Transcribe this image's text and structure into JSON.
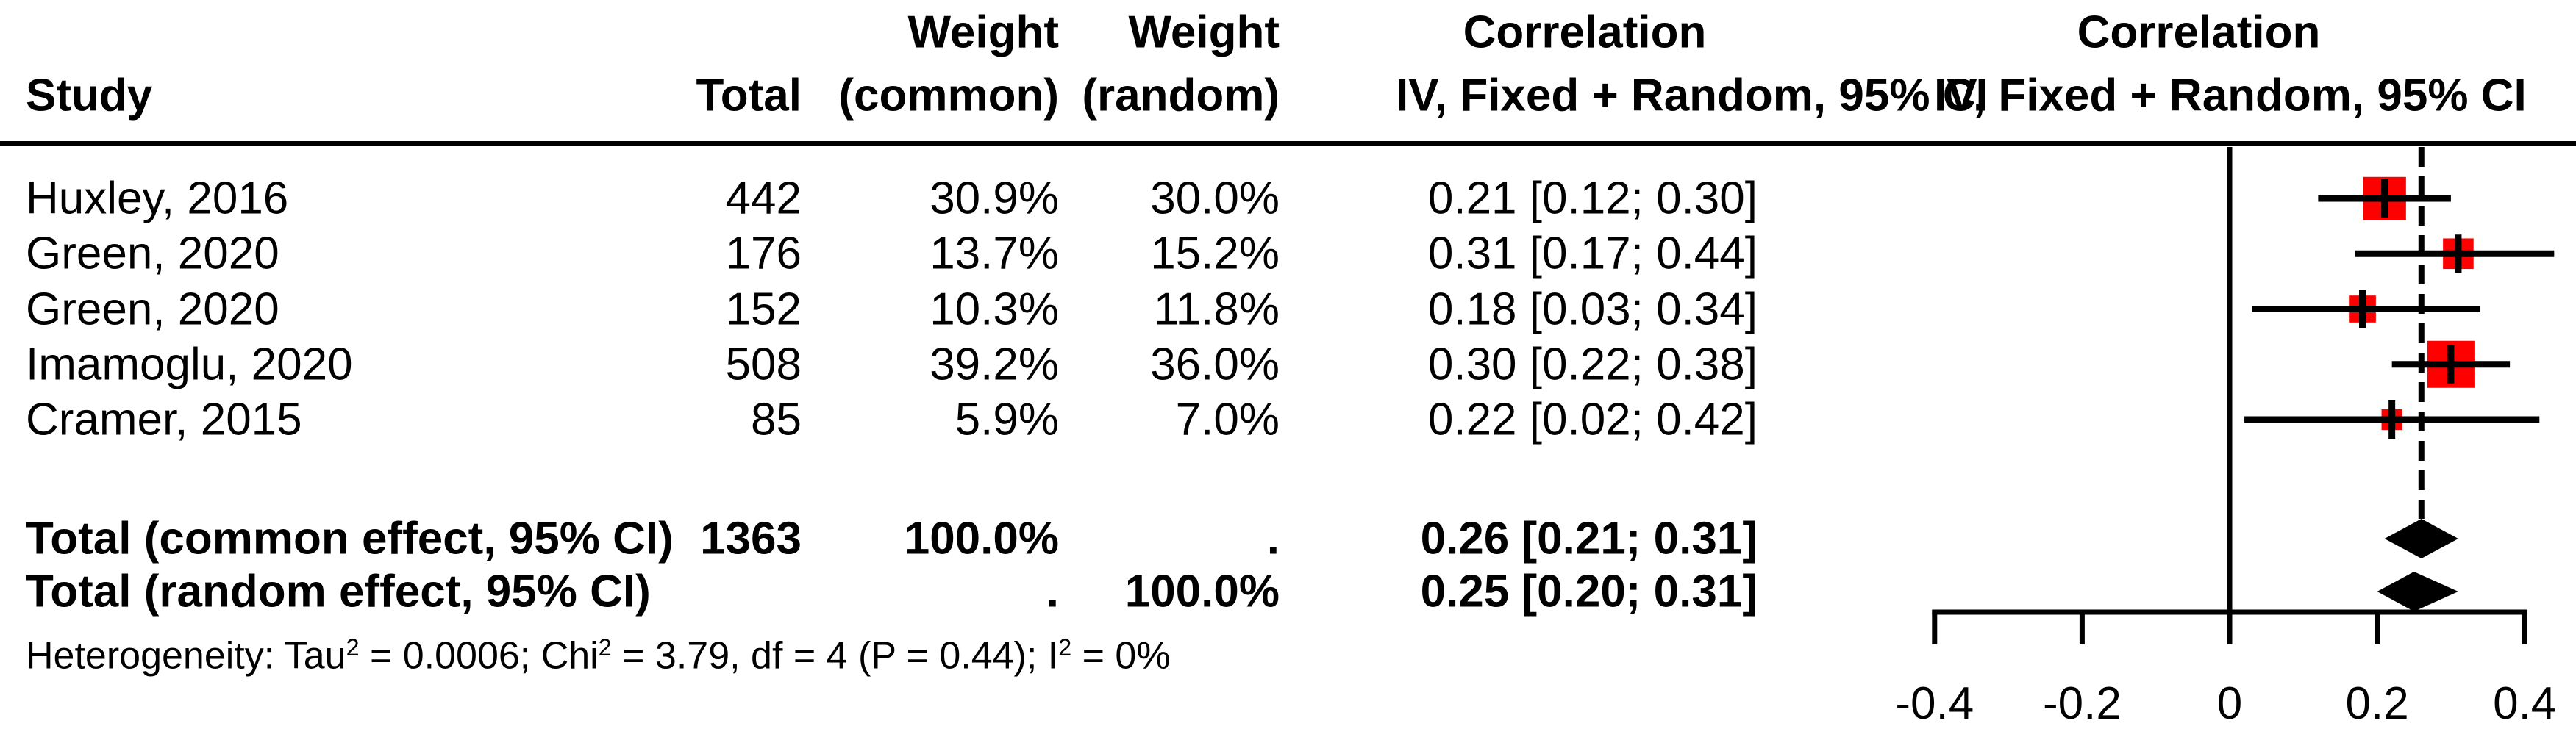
{
  "columns": {
    "study": "Study",
    "total": "Total",
    "weight_common_l1": "Weight",
    "weight_common_l2": "(common)",
    "weight_random_l1": "Weight",
    "weight_random_l2": "(random)",
    "corr_l1": "Correlation",
    "corr_l2": "IV, Fixed + Random, 95% CI",
    "plot_l1": "Correlation",
    "plot_l2": "IV, Fixed + Random, 95% CI"
  },
  "rows": [
    {
      "study": "Huxley, 2016",
      "total": "442",
      "weight_common": "30.9%",
      "weight_random": "30.0%",
      "correlation": "0.21 [0.12; 0.30]"
    },
    {
      "study": "Green, 2020",
      "total": "176",
      "weight_common": "13.7%",
      "weight_random": "15.2%",
      "correlation": "0.31 [0.17; 0.44]"
    },
    {
      "study": "Green, 2020",
      "total": "152",
      "weight_common": "10.3%",
      "weight_random": "11.8%",
      "correlation": "0.18 [0.03; 0.34]"
    },
    {
      "study": "Imamoglu, 2020",
      "total": "508",
      "weight_common": "39.2%",
      "weight_random": "36.0%",
      "correlation": "0.30 [0.22; 0.38]"
    },
    {
      "study": "Cramer, 2015",
      "total": "85",
      "weight_common": "5.9%",
      "weight_random": "7.0%",
      "correlation": "0.22 [0.02; 0.42]"
    }
  ],
  "totals": [
    {
      "label": "Total (common effect, 95% CI)",
      "total": "1363",
      "weight_common": "100.0%",
      "weight_random": ".",
      "correlation": "0.26 [0.21; 0.31]"
    },
    {
      "label": "Total (random effect, 95% CI)",
      "total": "",
      "weight_common": ".",
      "weight_random": "100.0%",
      "correlation": "0.25 [0.20; 0.31]"
    }
  ],
  "heterogeneity": {
    "p1": "Heterogeneity: Tau",
    "s1": "2",
    "p2": " = 0.0006; Chi",
    "s2": "2",
    "p3": " = 3.79, df = 4 (P = 0.44); I",
    "s3": "2",
    "p4": " = 0%"
  },
  "chart_data": {
    "type": "forest",
    "title": "Correlation, IV, Fixed + Random, 95% CI",
    "xlim": [
      -0.4,
      0.4
    ],
    "axis_ticks": [
      {
        "value": -0.4,
        "label": "-0.4"
      },
      {
        "value": -0.2,
        "label": "-0.2"
      },
      {
        "value": 0,
        "label": "0"
      },
      {
        "value": 0.2,
        "label": "0.2"
      },
      {
        "value": 0.4,
        "label": "0.4"
      }
    ],
    "reference_line": 0,
    "pooled_dashed_line": 0.26,
    "marker_color": "#FF0000",
    "line_color": "#000000",
    "studies": [
      {
        "name": "Huxley, 2016",
        "estimate": 0.21,
        "ci_low": 0.12,
        "ci_high": 0.3,
        "weight_common": 30.9,
        "weight_random": 30.0
      },
      {
        "name": "Green, 2020",
        "estimate": 0.31,
        "ci_low": 0.17,
        "ci_high": 0.44,
        "weight_common": 13.7,
        "weight_random": 15.2
      },
      {
        "name": "Green, 2020",
        "estimate": 0.18,
        "ci_low": 0.03,
        "ci_high": 0.34,
        "weight_common": 10.3,
        "weight_random": 11.8
      },
      {
        "name": "Imamoglu, 2020",
        "estimate": 0.3,
        "ci_low": 0.22,
        "ci_high": 0.38,
        "weight_common": 39.2,
        "weight_random": 36.0
      },
      {
        "name": "Cramer, 2015",
        "estimate": 0.22,
        "ci_low": 0.02,
        "ci_high": 0.42,
        "weight_common": 5.9,
        "weight_random": 7.0
      }
    ],
    "pooled": [
      {
        "name": "Total (common effect, 95% CI)",
        "estimate": 0.26,
        "ci_low": 0.21,
        "ci_high": 0.31
      },
      {
        "name": "Total (random effect, 95% CI)",
        "estimate": 0.25,
        "ci_low": 0.2,
        "ci_high": 0.31
      }
    ]
  }
}
